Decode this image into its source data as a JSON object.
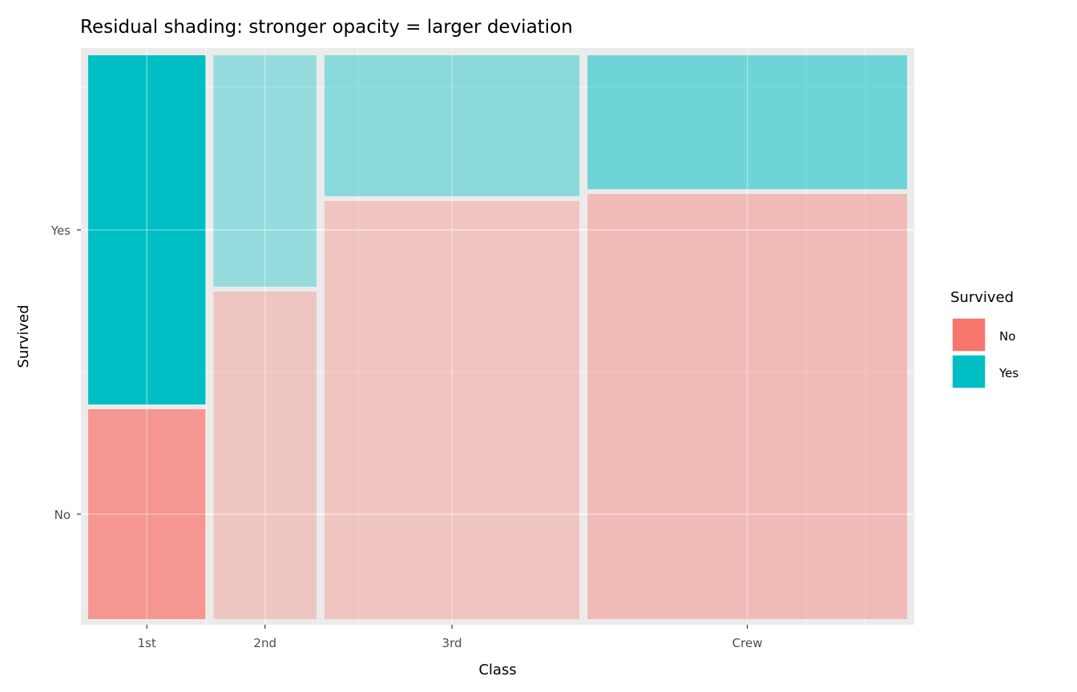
{
  "chart_data": {
    "type": "mosaic",
    "title": "Residual shading: stronger opacity = larger deviation",
    "xlabel": "Class",
    "ylabel": "Survived",
    "categories": [
      "1st",
      "2nd",
      "3rd",
      "Crew"
    ],
    "y_levels": [
      "No",
      "Yes"
    ],
    "counts": {
      "No": [
        122,
        167,
        528,
        673
      ],
      "Yes": [
        203,
        118,
        178,
        212
      ]
    },
    "opacity": {
      "No": [
        0.73,
        0.32,
        0.33,
        0.42
      ],
      "Yes": [
        1.0,
        0.36,
        0.41,
        0.53
      ]
    },
    "colors": {
      "No": "#F8766D",
      "Yes": "#00BFC4"
    },
    "legend": {
      "title": "Survived",
      "items": [
        "No",
        "Yes"
      ],
      "position": "right"
    },
    "grid": true
  }
}
